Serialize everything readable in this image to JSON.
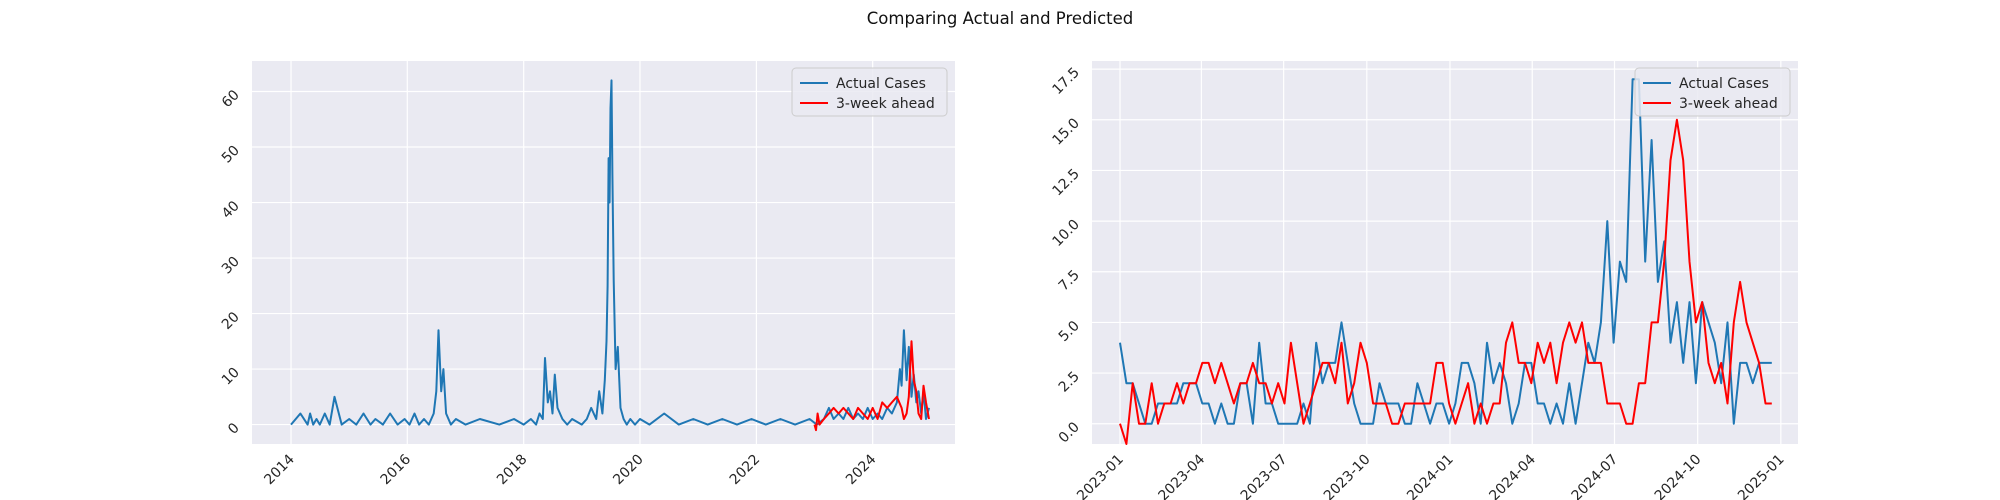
{
  "figure": {
    "suptitle": "Comparing Actual and Predicted"
  },
  "colors": {
    "actual": "#1f77b4",
    "predicted": "#ff0000",
    "axes_bg": "#eaeaf2",
    "grid": "#ffffff"
  },
  "chart_data": [
    {
      "type": "line",
      "x_type": "date",
      "grid": true,
      "legend": "top-right",
      "xlim": [
        "2013-05-01",
        "2025-06-01"
      ],
      "ylim": [
        -3.5,
        65.5
      ],
      "xticks": [
        "2014-01-01",
        "2016-01-01",
        "2018-01-01",
        "2020-01-01",
        "2022-01-01",
        "2024-01-01"
      ],
      "xtick_labels": [
        "2014",
        "2016",
        "2018",
        "2020",
        "2022",
        "2024"
      ],
      "yticks": [
        0,
        10,
        20,
        30,
        40,
        50,
        60
      ],
      "ytick_labels": [
        "0",
        "10",
        "20",
        "30",
        "40",
        "50",
        "60"
      ],
      "series": [
        {
          "name": "Actual Cases",
          "color": "#1f77b4",
          "x": [
            "2014-01-01",
            "2014-03-01",
            "2014-04-15",
            "2014-05-01",
            "2014-05-20",
            "2014-06-10",
            "2014-07-01",
            "2014-08-01",
            "2014-09-01",
            "2014-10-01",
            "2014-11-15",
            "2015-01-01",
            "2015-02-15",
            "2015-04-01",
            "2015-05-15",
            "2015-06-15",
            "2015-08-01",
            "2015-09-15",
            "2015-11-01",
            "2015-12-15",
            "2016-01-15",
            "2016-02-15",
            "2016-03-15",
            "2016-04-15",
            "2016-05-15",
            "2016-06-15",
            "2016-07-01",
            "2016-07-15",
            "2016-08-01",
            "2016-08-15",
            "2016-09-01",
            "2016-10-01",
            "2016-11-01",
            "2017-01-01",
            "2017-04-01",
            "2017-08-01",
            "2017-11-01",
            "2018-01-01",
            "2018-02-15",
            "2018-03-20",
            "2018-04-10",
            "2018-05-01",
            "2018-05-15",
            "2018-06-01",
            "2018-06-15",
            "2018-07-01",
            "2018-07-15",
            "2018-08-01",
            "2018-09-01",
            "2018-10-01",
            "2018-11-01",
            "2019-01-01",
            "2019-02-01",
            "2019-03-01",
            "2019-04-01",
            "2019-04-20",
            "2019-05-10",
            "2019-05-25",
            "2019-06-05",
            "2019-06-12",
            "2019-06-18",
            "2019-06-24",
            "2019-06-30",
            "2019-07-06",
            "2019-07-12",
            "2019-07-20",
            "2019-08-01",
            "2019-08-15",
            "2019-09-01",
            "2019-09-20",
            "2019-10-10",
            "2019-11-01",
            "2019-12-01",
            "2020-01-01",
            "2020-03-01",
            "2020-06-01",
            "2020-09-01",
            "2020-12-01",
            "2021-03-01",
            "2021-06-01",
            "2021-09-01",
            "2021-12-01",
            "2022-03-01",
            "2022-06-01",
            "2022-09-01",
            "2022-12-01",
            "2023-01-15",
            "2023-03-01",
            "2023-04-01",
            "2023-05-01",
            "2023-06-01",
            "2023-07-01",
            "2023-08-01",
            "2023-09-01",
            "2023-10-01",
            "2023-11-01",
            "2023-12-01",
            "2024-01-01",
            "2024-02-01",
            "2024-03-01",
            "2024-04-01",
            "2024-05-01",
            "2024-06-01",
            "2024-06-20",
            "2024-07-01",
            "2024-07-15",
            "2024-08-01",
            "2024-08-15",
            "2024-09-01",
            "2024-09-15",
            "2024-10-01",
            "2024-10-15",
            "2024-11-01",
            "2024-11-15",
            "2024-12-01",
            "2024-12-20"
          ],
          "y": [
            0,
            2,
            0,
            2,
            0,
            1,
            0,
            2,
            0,
            5,
            0,
            1,
            0,
            2,
            0,
            1,
            0,
            2,
            0,
            1,
            0,
            2,
            0,
            1,
            0,
            2,
            6,
            17,
            6,
            10,
            2,
            0,
            1,
            0,
            1,
            0,
            1,
            0,
            1,
            0,
            2,
            1,
            12,
            4,
            6,
            2,
            9,
            3,
            1,
            0,
            1,
            0,
            1,
            3,
            1,
            6,
            2,
            8,
            15,
            25,
            48,
            40,
            57,
            62,
            45,
            26,
            10,
            14,
            3,
            1,
            0,
            1,
            0,
            1,
            0,
            2,
            0,
            1,
            0,
            1,
            0,
            1,
            0,
            1,
            0,
            1,
            0,
            1,
            3,
            1,
            2,
            1,
            3,
            1,
            2,
            1,
            3,
            1,
            2,
            1,
            3,
            2,
            4,
            10,
            7,
            17,
            8,
            14,
            5,
            9,
            4,
            6,
            2,
            6,
            1,
            3
          ]
        },
        {
          "name": "3-week ahead",
          "color": "#ff0000",
          "x": [
            "2023-01-01",
            "2023-01-10",
            "2023-01-20",
            "2023-02-01",
            "2023-03-01",
            "2023-04-01",
            "2023-05-01",
            "2023-06-01",
            "2023-07-01",
            "2023-08-01",
            "2023-09-01",
            "2023-10-01",
            "2023-11-01",
            "2023-12-01",
            "2024-01-01",
            "2024-02-01",
            "2024-03-01",
            "2024-04-01",
            "2024-05-01",
            "2024-06-01",
            "2024-07-01",
            "2024-07-15",
            "2024-08-01",
            "2024-08-15",
            "2024-09-01",
            "2024-09-15",
            "2024-10-01",
            "2024-10-15",
            "2024-11-01",
            "2024-11-15",
            "2024-12-01",
            "2024-12-20"
          ],
          "y": [
            0,
            -1,
            2,
            0,
            1,
            2,
            3,
            2,
            3,
            2,
            1,
            3,
            2,
            1,
            3,
            1,
            4,
            3,
            4,
            5,
            3,
            1,
            2,
            5,
            15,
            8,
            6,
            2,
            1,
            7,
            4,
            1
          ]
        }
      ]
    },
    {
      "type": "line",
      "x_type": "date",
      "grid": true,
      "legend": "top-right",
      "xlim": [
        "2022-12-01",
        "2025-01-20"
      ],
      "ylim": [
        -1.0,
        17.9
      ],
      "xticks": [
        "2023-01-01",
        "2023-04-01",
        "2023-07-01",
        "2023-10-01",
        "2024-01-01",
        "2024-04-01",
        "2024-07-01",
        "2024-10-01",
        "2025-01-01"
      ],
      "xtick_labels": [
        "2023-01",
        "2023-04",
        "2023-07",
        "2023-10",
        "2024-01",
        "2024-04",
        "2024-07",
        "2024-10",
        "2025-01"
      ],
      "yticks": [
        0,
        2.5,
        5,
        7.5,
        10,
        12.5,
        15,
        17.5
      ],
      "ytick_labels": [
        "0.0",
        "2.5",
        "5.0",
        "7.5",
        "10.0",
        "12.5",
        "15.0",
        "17.5"
      ],
      "series": [
        {
          "name": "Actual Cases",
          "color": "#1f77b4",
          "x": [
            "2023-01-01",
            "2023-01-08",
            "2023-01-15",
            "2023-01-22",
            "2023-01-29",
            "2023-02-05",
            "2023-02-12",
            "2023-02-19",
            "2023-02-26",
            "2023-03-05",
            "2023-03-12",
            "2023-03-19",
            "2023-03-26",
            "2023-04-02",
            "2023-04-09",
            "2023-04-16",
            "2023-04-23",
            "2023-04-30",
            "2023-05-07",
            "2023-05-14",
            "2023-05-21",
            "2023-05-28",
            "2023-06-04",
            "2023-06-11",
            "2023-06-18",
            "2023-06-25",
            "2023-07-02",
            "2023-07-09",
            "2023-07-16",
            "2023-07-23",
            "2023-07-30",
            "2023-08-06",
            "2023-08-13",
            "2023-08-20",
            "2023-08-27",
            "2023-09-03",
            "2023-09-10",
            "2023-09-17",
            "2023-09-24",
            "2023-10-01",
            "2023-10-08",
            "2023-10-15",
            "2023-10-22",
            "2023-10-29",
            "2023-11-05",
            "2023-11-12",
            "2023-11-19",
            "2023-11-26",
            "2023-12-03",
            "2023-12-10",
            "2023-12-17",
            "2023-12-24",
            "2023-12-31",
            "2024-01-07",
            "2024-01-14",
            "2024-01-21",
            "2024-01-28",
            "2024-02-04",
            "2024-02-11",
            "2024-02-18",
            "2024-02-25",
            "2024-03-03",
            "2024-03-10",
            "2024-03-17",
            "2024-03-24",
            "2024-03-31",
            "2024-04-07",
            "2024-04-14",
            "2024-04-21",
            "2024-04-28",
            "2024-05-05",
            "2024-05-12",
            "2024-05-19",
            "2024-05-26",
            "2024-06-02",
            "2024-06-09",
            "2024-06-16",
            "2024-06-23",
            "2024-06-30",
            "2024-07-07",
            "2024-07-14",
            "2024-07-21",
            "2024-07-28",
            "2024-08-04",
            "2024-08-11",
            "2024-08-18",
            "2024-08-25",
            "2024-09-01",
            "2024-09-08",
            "2024-09-15",
            "2024-09-22",
            "2024-09-29",
            "2024-10-06",
            "2024-10-13",
            "2024-10-20",
            "2024-10-27",
            "2024-11-03",
            "2024-11-10",
            "2024-11-17",
            "2024-11-24",
            "2024-12-01",
            "2024-12-08",
            "2024-12-15",
            "2024-12-22"
          ],
          "y": [
            4,
            2,
            2,
            1,
            0,
            0,
            1,
            1,
            1,
            1,
            2,
            2,
            2,
            1,
            1,
            0,
            1,
            0,
            0,
            2,
            2,
            0,
            4,
            1,
            1,
            0,
            0,
            0,
            0,
            1,
            0,
            4,
            2,
            3,
            3,
            5,
            3,
            1,
            0,
            0,
            0,
            2,
            1,
            1,
            1,
            0,
            0,
            2,
            1,
            0,
            1,
            1,
            0,
            1,
            3,
            3,
            2,
            0,
            4,
            2,
            3,
            2,
            0,
            1,
            3,
            3,
            1,
            1,
            0,
            1,
            0,
            2,
            0,
            2,
            4,
            3,
            5,
            10,
            4,
            8,
            7,
            17,
            17,
            8,
            14,
            7,
            9,
            4,
            6,
            3,
            6,
            2,
            6,
            5,
            4,
            2,
            5,
            0,
            3,
            3,
            2,
            3,
            3,
            3
          ]
        },
        {
          "name": "3-week ahead",
          "color": "#ff0000",
          "x": [
            "2023-01-01",
            "2023-01-08",
            "2023-01-15",
            "2023-01-22",
            "2023-01-29",
            "2023-02-05",
            "2023-02-12",
            "2023-02-19",
            "2023-02-26",
            "2023-03-05",
            "2023-03-12",
            "2023-03-19",
            "2023-03-26",
            "2023-04-02",
            "2023-04-09",
            "2023-04-16",
            "2023-04-23",
            "2023-04-30",
            "2023-05-07",
            "2023-05-14",
            "2023-05-21",
            "2023-05-28",
            "2023-06-04",
            "2023-06-11",
            "2023-06-18",
            "2023-06-25",
            "2023-07-02",
            "2023-07-09",
            "2023-07-16",
            "2023-07-23",
            "2023-07-30",
            "2023-08-06",
            "2023-08-13",
            "2023-08-20",
            "2023-08-27",
            "2023-09-03",
            "2023-09-10",
            "2023-09-17",
            "2023-09-24",
            "2023-10-01",
            "2023-10-08",
            "2023-10-15",
            "2023-10-22",
            "2023-10-29",
            "2023-11-05",
            "2023-11-12",
            "2023-11-19",
            "2023-11-26",
            "2023-12-03",
            "2023-12-10",
            "2023-12-17",
            "2023-12-24",
            "2023-12-31",
            "2024-01-07",
            "2024-01-14",
            "2024-01-21",
            "2024-01-28",
            "2024-02-04",
            "2024-02-11",
            "2024-02-18",
            "2024-02-25",
            "2024-03-03",
            "2024-03-10",
            "2024-03-17",
            "2024-03-24",
            "2024-03-31",
            "2024-04-07",
            "2024-04-14",
            "2024-04-21",
            "2024-04-28",
            "2024-05-05",
            "2024-05-12",
            "2024-05-19",
            "2024-05-26",
            "2024-06-02",
            "2024-06-09",
            "2024-06-16",
            "2024-06-23",
            "2024-06-30",
            "2024-07-07",
            "2024-07-14",
            "2024-07-21",
            "2024-07-28",
            "2024-08-04",
            "2024-08-11",
            "2024-08-18",
            "2024-08-25",
            "2024-09-01",
            "2024-09-08",
            "2024-09-15",
            "2024-09-22",
            "2024-09-29",
            "2024-10-06",
            "2024-10-13",
            "2024-10-20",
            "2024-10-27",
            "2024-11-03",
            "2024-11-10",
            "2024-11-17",
            "2024-11-24",
            "2024-12-01",
            "2024-12-08",
            "2024-12-15",
            "2024-12-22"
          ],
          "y": [
            0,
            -1,
            2,
            0,
            0,
            2,
            0,
            1,
            1,
            2,
            1,
            2,
            2,
            3,
            3,
            2,
            3,
            2,
            1,
            2,
            2,
            3,
            2,
            2,
            1,
            2,
            1,
            4,
            2,
            0,
            1,
            2,
            3,
            3,
            2,
            4,
            1,
            2,
            4,
            3,
            1,
            1,
            1,
            0,
            0,
            1,
            1,
            1,
            1,
            1,
            3,
            3,
            1,
            0,
            1,
            2,
            0,
            1,
            0,
            1,
            1,
            4,
            5,
            3,
            3,
            2,
            4,
            3,
            4,
            2,
            4,
            5,
            4,
            5,
            3,
            3,
            3,
            1,
            1,
            1,
            0,
            0,
            2,
            2,
            5,
            5,
            8,
            13,
            15,
            13,
            8,
            5,
            6,
            3,
            2,
            3,
            1,
            5,
            7,
            5,
            4,
            3,
            1,
            1
          ]
        }
      ]
    }
  ]
}
